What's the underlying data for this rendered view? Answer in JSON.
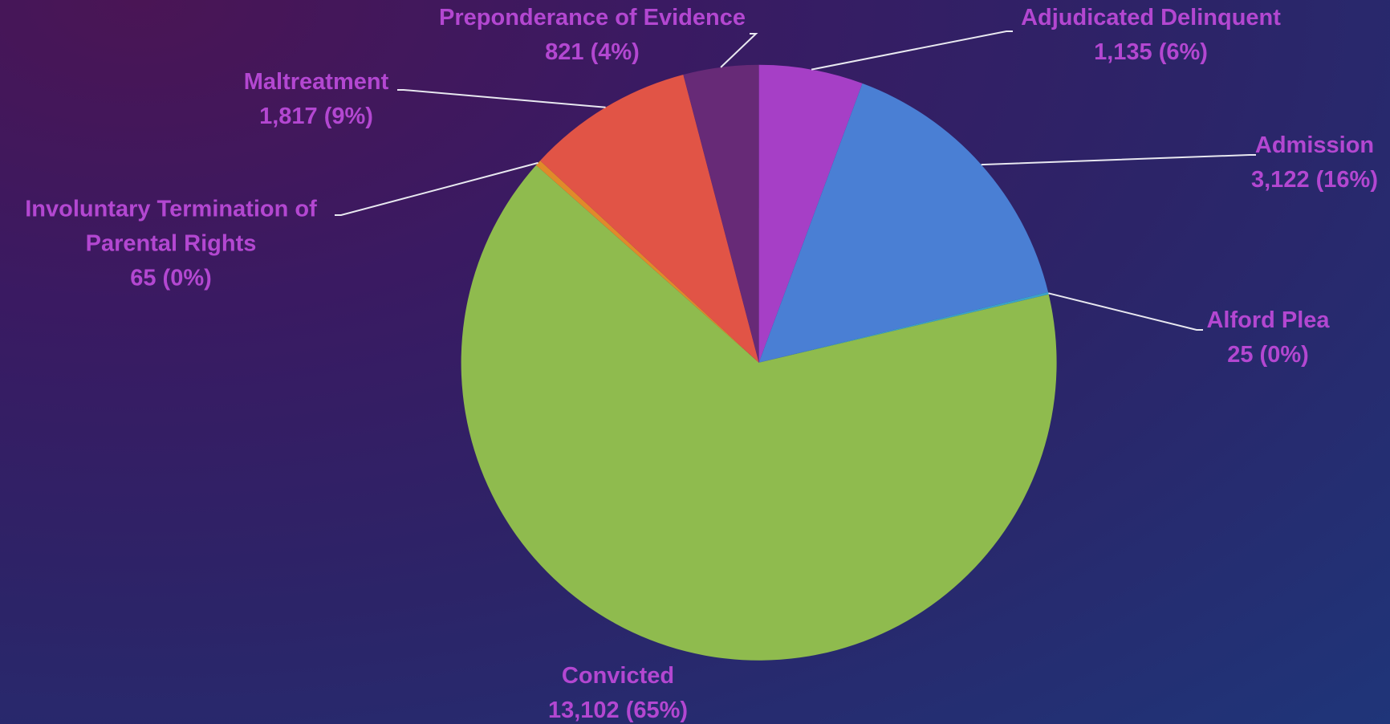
{
  "chart_data": {
    "type": "pie",
    "categories": [
      "Adjudicated Delinquent",
      "Admission",
      "Alford Plea",
      "Convicted",
      "Involuntary Termination of Parental Rights",
      "Maltreatment",
      "Preponderance of Evidence"
    ],
    "values": [
      1135,
      3122,
      25,
      13102,
      65,
      1817,
      821
    ],
    "value_labels": [
      "1,135 (6%)",
      "3,122 (16%)",
      "25 (0%)",
      "13,102 (65%)",
      "65 (0%)",
      "1,817 (9%)",
      "821 (4%)"
    ],
    "colors": [
      "#a63fc6",
      "#4a7fd4",
      "#3aa3c9",
      "#8fbb4e",
      "#e08a2a",
      "#e15446",
      "#672a77"
    ]
  }
}
